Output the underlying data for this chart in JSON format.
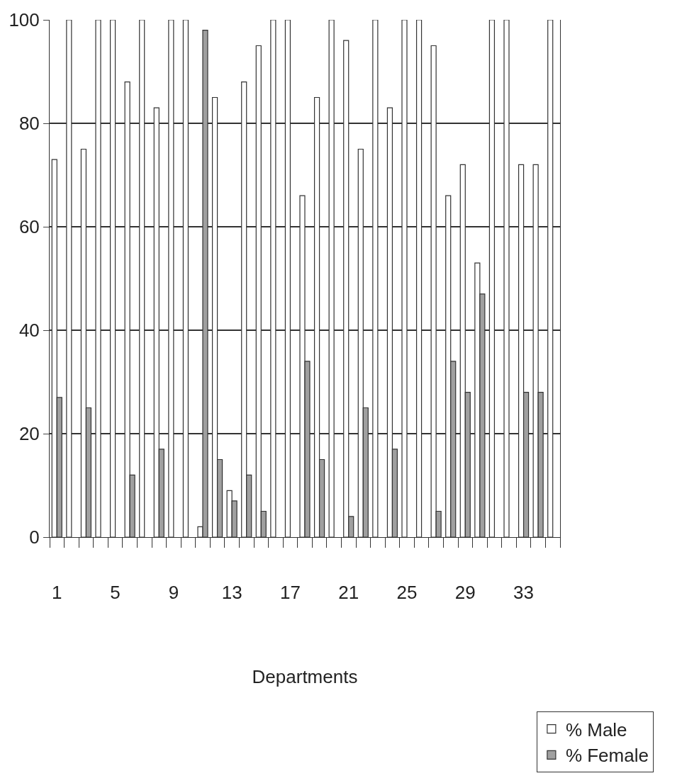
{
  "chart_data": {
    "type": "bar",
    "xlabel": "Departments",
    "categories": [
      "1",
      null,
      null,
      null,
      "5",
      null,
      null,
      null,
      "9",
      null,
      null,
      null,
      "13",
      null,
      null,
      null,
      "17",
      null,
      null,
      null,
      "21",
      null,
      null,
      null,
      "25",
      null,
      null,
      null,
      "29",
      null,
      null,
      null,
      "33",
      null,
      null
    ],
    "series": [
      {
        "name": "% Male",
        "color": "#ffffff",
        "values": [
          73,
          100,
          75,
          100,
          100,
          88,
          100,
          83,
          100,
          100,
          2,
          85,
          9,
          88,
          95,
          100,
          100,
          66,
          85,
          100,
          96,
          75,
          100,
          83,
          100,
          100,
          95,
          66,
          72,
          53,
          100,
          100,
          72,
          72,
          100
        ]
      },
      {
        "name": "% Female",
        "color": "#a0a0a0",
        "values": [
          27,
          0,
          25,
          0,
          0,
          12,
          0,
          17,
          0,
          0,
          98,
          15,
          7,
          12,
          5,
          0,
          0,
          34,
          15,
          0,
          4,
          25,
          0,
          17,
          0,
          0,
          5,
          34,
          28,
          47,
          0,
          0,
          28,
          28,
          0
        ]
      }
    ],
    "ylim": [
      0,
      100
    ],
    "yticks": [
      0,
      20,
      40,
      60,
      80,
      100
    ],
    "grid": "y",
    "legend": "bottom right"
  }
}
